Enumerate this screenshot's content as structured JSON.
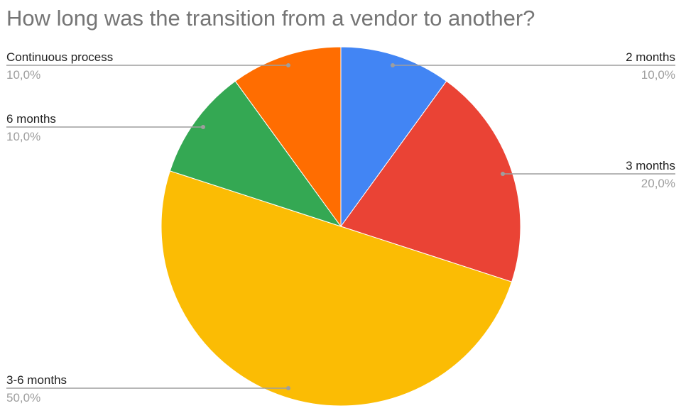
{
  "chart_data": {
    "type": "pie",
    "title": "How long was the transition from a vendor to another?",
    "legend": "labels on slices with leader lines",
    "slices": [
      {
        "label": "2 months",
        "value": 10.0,
        "percent_label": "10,0%",
        "color": "#4285F4"
      },
      {
        "label": "3 months",
        "value": 20.0,
        "percent_label": "20,0%",
        "color": "#EA4335"
      },
      {
        "label": "3-6 months",
        "value": 50.0,
        "percent_label": "50,0%",
        "color": "#FBBC04"
      },
      {
        "label": "6 months",
        "value": 10.0,
        "percent_label": "10,0%",
        "color": "#34A853"
      },
      {
        "label": "Continuous process",
        "value": 10.0,
        "percent_label": "10,0%",
        "color": "#FF6D01"
      }
    ]
  }
}
